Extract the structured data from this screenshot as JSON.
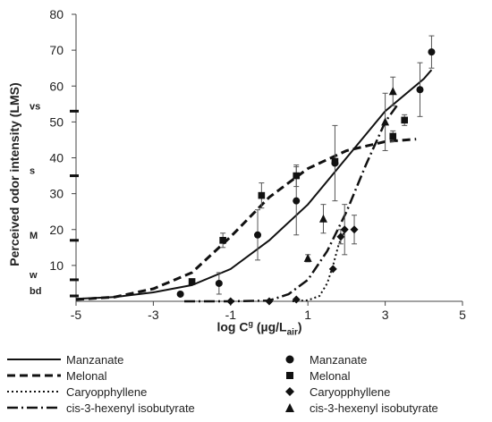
{
  "chart_data": {
    "type": "scatter",
    "xlabel": {
      "main": "log C",
      "sup": "g",
      "mid": " (µg/L",
      "sub": "air",
      "end": ")"
    },
    "ylabel": "Perceived odor intensity (LMS)",
    "xlim": [
      -5,
      5
    ],
    "ylim": [
      0,
      80
    ],
    "x_ticks": [
      -5,
      -3,
      -1,
      1,
      3,
      5
    ],
    "y_ticks": [
      10,
      20,
      30,
      40,
      50,
      60,
      70,
      80
    ],
    "lms_labels": [
      {
        "label": "bd",
        "y": 1.5
      },
      {
        "label": "w",
        "y": 6
      },
      {
        "label": "M",
        "y": 17
      },
      {
        "label": "s",
        "y": 35
      },
      {
        "label": "vs",
        "y": 53
      }
    ],
    "series": [
      {
        "name": "Manzanate",
        "marker": "circle",
        "line": "solid",
        "points": [
          {
            "x": -2.3,
            "y": 2,
            "err": 0
          },
          {
            "x": -1.3,
            "y": 5,
            "err": 3
          },
          {
            "x": -0.3,
            "y": 18.5,
            "err": 7
          },
          {
            "x": 0.7,
            "y": 28,
            "err": 9.5
          },
          {
            "x": 1.7,
            "y": 38.5,
            "err": 10.5
          },
          {
            "x": 3.9,
            "y": 59,
            "err": 7.5
          },
          {
            "x": 4.2,
            "y": 69.5,
            "err": 4.5
          }
        ],
        "curve": [
          [
            -5,
            0.7
          ],
          [
            -4,
            1.2
          ],
          [
            -3,
            2.5
          ],
          [
            -2,
            4.5
          ],
          [
            -1,
            9
          ],
          [
            0,
            17
          ],
          [
            1,
            27
          ],
          [
            2,
            40
          ],
          [
            3,
            53
          ],
          [
            4,
            62
          ],
          [
            4.2,
            64.5
          ]
        ]
      },
      {
        "name": "Melonal",
        "marker": "square",
        "line": "dashed",
        "points": [
          {
            "x": -2,
            "y": 5.5,
            "err": 0
          },
          {
            "x": -1.2,
            "y": 17,
            "err": 2
          },
          {
            "x": -0.2,
            "y": 29.5,
            "err": 3.5
          },
          {
            "x": 0.7,
            "y": 35,
            "err": 3
          },
          {
            "x": 1.7,
            "y": 39,
            "err": 0.5
          },
          {
            "x": 3.2,
            "y": 46,
            "err": 1.5
          },
          {
            "x": 3.5,
            "y": 50.5,
            "err": 1.5
          }
        ],
        "curve": [
          [
            -5,
            0.5
          ],
          [
            -4,
            1.2
          ],
          [
            -3,
            3.5
          ],
          [
            -2,
            8
          ],
          [
            -1,
            18
          ],
          [
            0,
            29
          ],
          [
            1,
            37
          ],
          [
            2,
            42
          ],
          [
            3,
            44.5
          ],
          [
            3.8,
            45.2
          ]
        ]
      },
      {
        "name": "Caryopphyllene",
        "marker": "diamond",
        "line": "dotted",
        "points": [
          {
            "x": -1,
            "y": 0,
            "err": 0
          },
          {
            "x": 0,
            "y": 0,
            "err": 0
          },
          {
            "x": 0.7,
            "y": 0.5,
            "err": 0
          },
          {
            "x": 1.65,
            "y": 9,
            "err": 0
          },
          {
            "x": 1.85,
            "y": 18,
            "err": 2
          },
          {
            "x": 1.95,
            "y": 20,
            "err": 7
          },
          {
            "x": 2.2,
            "y": 20,
            "err": 4
          }
        ],
        "curve": [
          [
            0.6,
            0
          ],
          [
            1.0,
            0.3
          ],
          [
            1.3,
            1.5
          ],
          [
            1.5,
            5
          ],
          [
            1.65,
            10
          ],
          [
            1.8,
            16
          ],
          [
            1.95,
            19.5
          ]
        ]
      },
      {
        "name": "cis-3-hexenyl isobutyrate",
        "marker": "triangle",
        "line": "dashdot",
        "points": [
          {
            "x": 1,
            "y": 12,
            "err": 1
          },
          {
            "x": 1.4,
            "y": 23,
            "err": 4
          },
          {
            "x": 3,
            "y": 50,
            "err": 8
          },
          {
            "x": 3.2,
            "y": 58.5,
            "err": 4
          }
        ],
        "curve": [
          [
            -2.2,
            0
          ],
          [
            -1,
            0
          ],
          [
            0,
            0.2
          ],
          [
            0.5,
            2
          ],
          [
            1,
            6
          ],
          [
            1.5,
            14
          ],
          [
            2,
            25
          ],
          [
            2.5,
            38
          ],
          [
            3,
            50
          ],
          [
            3.3,
            54.5
          ]
        ]
      }
    ],
    "legend": {
      "placement": "bottom",
      "line_entries": [
        "Manzanate",
        "Melonal",
        "Caryopphyllene",
        "cis-3-hexenyl isobutyrate"
      ],
      "marker_entries": [
        "Manzanate",
        "Melonal",
        "Caryopphyllene",
        "cis-3-hexenyl isobutyrate"
      ]
    },
    "grid": false
  }
}
